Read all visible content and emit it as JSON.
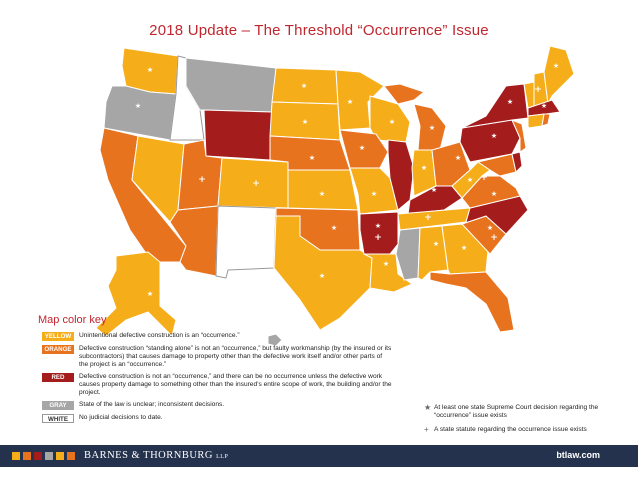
{
  "title": "2018 Update – The Threshold “Occurrence” Issue",
  "colors": {
    "yellow": "#f6ad1a",
    "orange": "#e8731f",
    "red": "#a51c1c",
    "gray": "#a6a6a6",
    "white": "#ffffff",
    "footer": "#24324e",
    "accent_title": "#c0262e"
  },
  "key": {
    "title": "Map color key",
    "items": [
      {
        "label": "YELLOW",
        "desc": "Unintentional defective construction is an “occurrence.”"
      },
      {
        "label": "ORANGE",
        "desc": "Defective construction “standing alone” is not an “occurrence,” but faulty workmanship (by the insured or its subcontractors) that causes damage to property other than the defective work itself and/or other parts of the project is an “occurrence.”"
      },
      {
        "label": "RED",
        "desc": "Defective construction is not an “occurrence,” and there can be no occurrence unless the defective work causes property damage to something other than the insured’s entire scope of work, the building and/or the project."
      },
      {
        "label": "GRAY",
        "desc": "State of the law is unclear; inconsistent decisions."
      },
      {
        "label": "WHITE",
        "desc": "No judicial decisions to date."
      }
    ]
  },
  "symbols": [
    {
      "icon": "star-icon",
      "glyph": "★",
      "desc": "At least one state Supreme Court decision regarding the “occurrence” issue exists"
    },
    {
      "icon": "plus-icon",
      "glyph": "+",
      "desc": "A state statute regarding the occurrence issue exists"
    }
  ],
  "footer": {
    "brand": "BARNES & THORNBURG",
    "brand_suffix": "LLP",
    "website": "btlaw.com",
    "squares": [
      "#f6ad1a",
      "#e8731f",
      "#a51c1c",
      "#a6a6a6",
      "#f6ad1a",
      "#e8731f"
    ]
  }
}
